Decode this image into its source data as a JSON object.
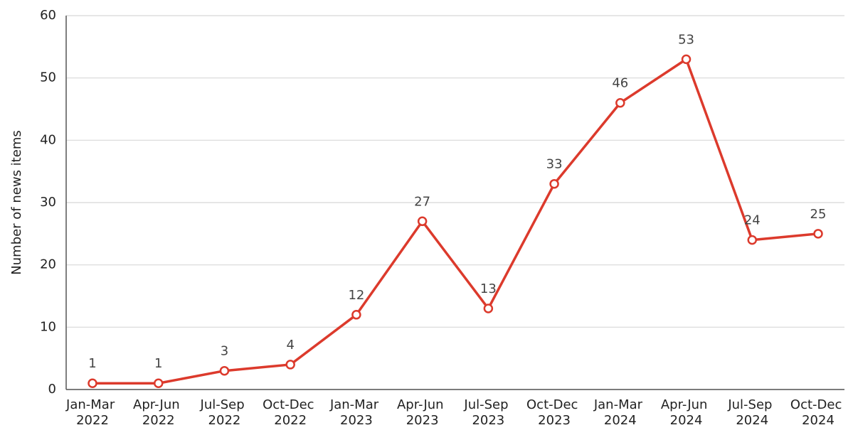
{
  "chart_data": {
    "type": "line",
    "y_label": "Number of news items",
    "categories": [
      "Jan-Mar 2022",
      "Apr-Jun 2022",
      "Jul-Sep 2022",
      "Oct-Dec 2022",
      "Jan-Mar 2023",
      "Apr-Jun 2023",
      "Jul-Sep 2023",
      "Oct-Dec 2023",
      "Jan-Mar 2024",
      "Apr-Jun 2024",
      "Jul-Sep 2024",
      "Oct-Dec 2024"
    ],
    "series": [
      {
        "name": "News items",
        "color": "#dc3a2c",
        "values": [
          1,
          1,
          3,
          4,
          12,
          27,
          13,
          33,
          46,
          53,
          24,
          25
        ]
      }
    ],
    "ylim": [
      0,
      60
    ],
    "yticks": [
      0,
      10,
      20,
      30,
      40,
      50,
      60
    ],
    "grid": true
  }
}
